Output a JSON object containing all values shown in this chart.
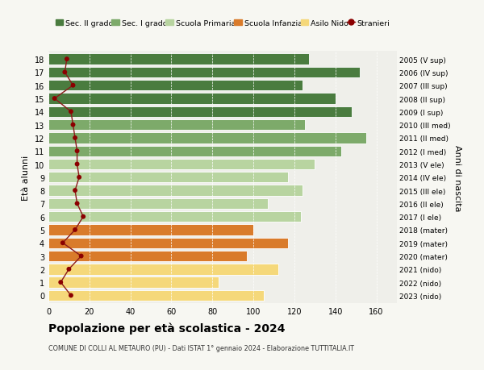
{
  "ages": [
    18,
    17,
    16,
    15,
    14,
    13,
    12,
    11,
    10,
    9,
    8,
    7,
    6,
    5,
    4,
    3,
    2,
    1,
    0
  ],
  "right_labels": [
    "2005 (V sup)",
    "2006 (IV sup)",
    "2007 (III sup)",
    "2008 (II sup)",
    "2009 (I sup)",
    "2010 (III med)",
    "2011 (II med)",
    "2012 (I med)",
    "2013 (V ele)",
    "2014 (IV ele)",
    "2015 (III ele)",
    "2016 (II ele)",
    "2017 (I ele)",
    "2018 (mater)",
    "2019 (mater)",
    "2020 (mater)",
    "2021 (nido)",
    "2022 (nido)",
    "2023 (nido)"
  ],
  "bar_values": [
    127,
    152,
    124,
    140,
    148,
    125,
    155,
    143,
    130,
    117,
    124,
    107,
    123,
    100,
    117,
    97,
    112,
    83,
    105
  ],
  "bar_colors": [
    "#4a7c3f",
    "#4a7c3f",
    "#4a7c3f",
    "#4a7c3f",
    "#4a7c3f",
    "#7daa6a",
    "#7daa6a",
    "#7daa6a",
    "#b8d4a0",
    "#b8d4a0",
    "#b8d4a0",
    "#b8d4a0",
    "#b8d4a0",
    "#d97b2b",
    "#d97b2b",
    "#d97b2b",
    "#f5d87a",
    "#f5d87a",
    "#f5d87a"
  ],
  "stranieri_values": [
    9,
    8,
    12,
    3,
    11,
    12,
    13,
    14,
    14,
    15,
    13,
    14,
    17,
    13,
    7,
    16,
    10,
    6,
    11
  ],
  "legend_labels": [
    "Sec. II grado",
    "Sec. I grado",
    "Scuola Primaria",
    "Scuola Infanzia",
    "Asilo Nido",
    "Stranieri"
  ],
  "legend_colors": [
    "#4a7c3f",
    "#7daa6a",
    "#b8d4a0",
    "#d97b2b",
    "#f5d87a",
    "#8b0000"
  ],
  "title": "Popolazione per età scolastica - 2024",
  "subtitle": "COMUNE DI COLLI AL METAURO (PU) - Dati ISTAT 1° gennaio 2024 - Elaborazione TUTTITALIA.IT",
  "ylabel_left": "Età alunni",
  "ylabel_right": "Anni di nascita",
  "xlim": [
    0,
    170
  ],
  "xticks": [
    0,
    20,
    40,
    60,
    80,
    100,
    120,
    140,
    160
  ],
  "bg_color": "#f7f7f2",
  "bar_bg_color": "#efefea"
}
